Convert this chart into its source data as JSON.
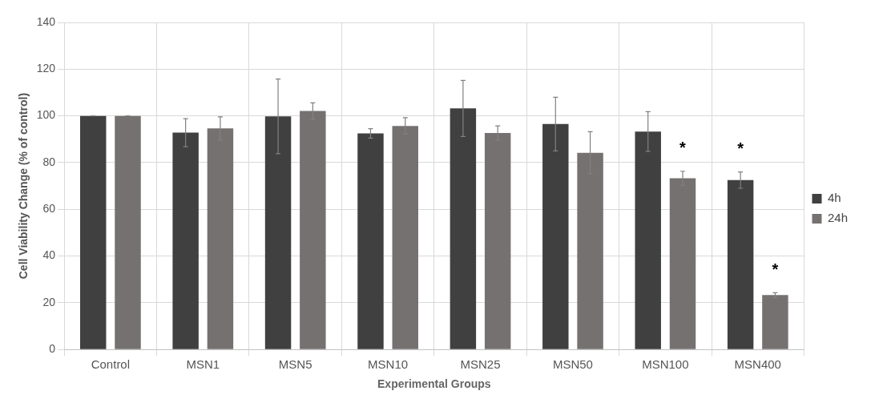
{
  "chart_data": {
    "type": "bar",
    "xlabel": "Experimental Groups",
    "ylabel": "Cell Viability Change (% of control)",
    "categories": [
      "Control",
      "MSN1",
      "MSN5",
      "MSN10",
      "MSN25",
      "MSN50",
      "MSN100",
      "MSN400"
    ],
    "series": [
      {
        "name": "4h",
        "color": "#404040",
        "values": [
          100,
          92.8,
          99.8,
          92.5,
          103.2,
          96.5,
          93.3,
          72.5
        ],
        "errors": [
          0,
          6,
          16,
          2,
          12,
          11.5,
          8.5,
          3.5
        ],
        "value_labels": [
          null,
          null,
          null,
          null,
          null,
          null,
          null,
          "*"
        ]
      },
      {
        "name": "24h",
        "color": "#767171",
        "values": [
          100,
          94.6,
          102.1,
          95.7,
          92.7,
          84.2,
          73.3,
          23.3
        ],
        "errors": [
          0,
          5,
          3.5,
          3.5,
          3,
          9,
          3,
          1
        ],
        "value_labels": [
          null,
          null,
          null,
          null,
          null,
          null,
          "*",
          "*"
        ]
      }
    ],
    "ylim": [
      0,
      140
    ],
    "yticks": [
      0,
      20,
      40,
      60,
      80,
      100,
      120,
      140
    ],
    "grid": true,
    "legend": "right"
  }
}
